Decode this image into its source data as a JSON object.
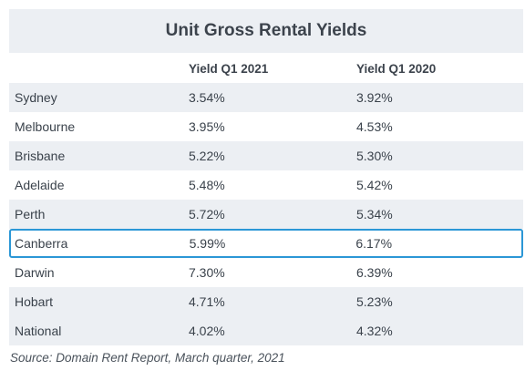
{
  "table": {
    "title": "Unit Gross Rental Yields",
    "columns": [
      "",
      "Yield Q1 2021",
      "Yield Q1 2020"
    ],
    "rows": [
      {
        "city": "Sydney",
        "y2021": "3.54%",
        "y2020": "3.92%"
      },
      {
        "city": "Melbourne",
        "y2021": "3.95%",
        "y2020": "4.53%"
      },
      {
        "city": "Brisbane",
        "y2021": "5.22%",
        "y2020": "5.30%"
      },
      {
        "city": "Adelaide",
        "y2021": "5.48%",
        "y2020": "5.42%"
      },
      {
        "city": "Perth",
        "y2021": "5.72%",
        "y2020": "5.34%"
      },
      {
        "city": "Canberra",
        "y2021": "5.99%",
        "y2020": "6.17%"
      },
      {
        "city": "Darwin",
        "y2021": "7.30%",
        "y2020": "6.39%"
      },
      {
        "city": "Hobart",
        "y2021": "4.71%",
        "y2020": "5.23%"
      },
      {
        "city": "National",
        "y2021": "4.02%",
        "y2020": "4.32%"
      }
    ],
    "highlighted_row": "Canberra",
    "highlight_color": "#2b97d6",
    "stripe_color": "#eceff3"
  },
  "source": "Source: Domain Rent Report, March quarter, 2021"
}
